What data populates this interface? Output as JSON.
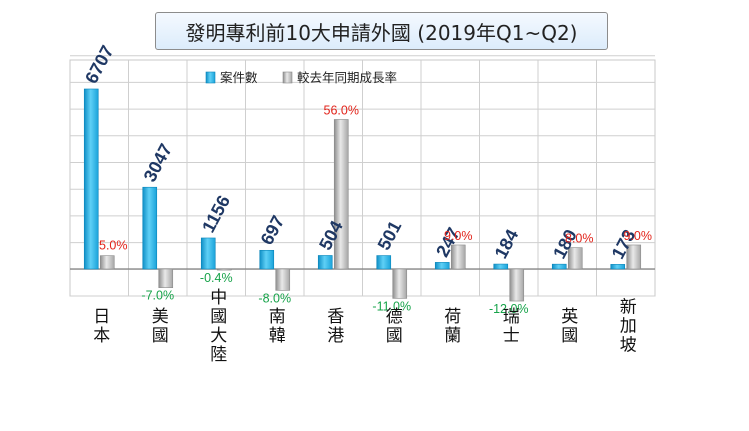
{
  "title": "發明專利前10大申請外國 (2019年Q1~Q2)",
  "legend": [
    {
      "label": "案件數",
      "color": "#22b2e8"
    },
    {
      "label": "較去年同期成長率",
      "color": "#b4b4b4"
    }
  ],
  "chart_data": {
    "type": "bar",
    "title": "發明專利前10大申請外國 (2019年Q1~Q2)",
    "categories": [
      "日本",
      "美國",
      "中國大陸",
      "南韓",
      "香港",
      "德國",
      "荷蘭",
      "瑞士",
      "英國",
      "新加坡"
    ],
    "series": [
      {
        "name": "案件數",
        "values": [
          6707,
          3047,
          1156,
          697,
          504,
          501,
          247,
          184,
          180,
          173
        ]
      },
      {
        "name": "較去年同期成長率",
        "values": [
          5.0,
          -7.0,
          -0.4,
          -8.0,
          56.0,
          -11.0,
          9.0,
          -12.0,
          8.0,
          9.0
        ]
      }
    ],
    "count_labels": [
      "6707",
      "3047",
      "1156",
      "697",
      "504",
      "501",
      "247",
      "184",
      "180",
      "173"
    ],
    "pct_labels": [
      "5.0%",
      "-7.0%",
      "-0.4%",
      "-8.0%",
      "56.0%",
      "-11.0%",
      "9.0%",
      "-12.0%",
      "8.0%",
      "9.0%"
    ],
    "positive_color": "#e2231a",
    "negative_color": "#17a34a",
    "grid": true,
    "legend_position": "top"
  }
}
